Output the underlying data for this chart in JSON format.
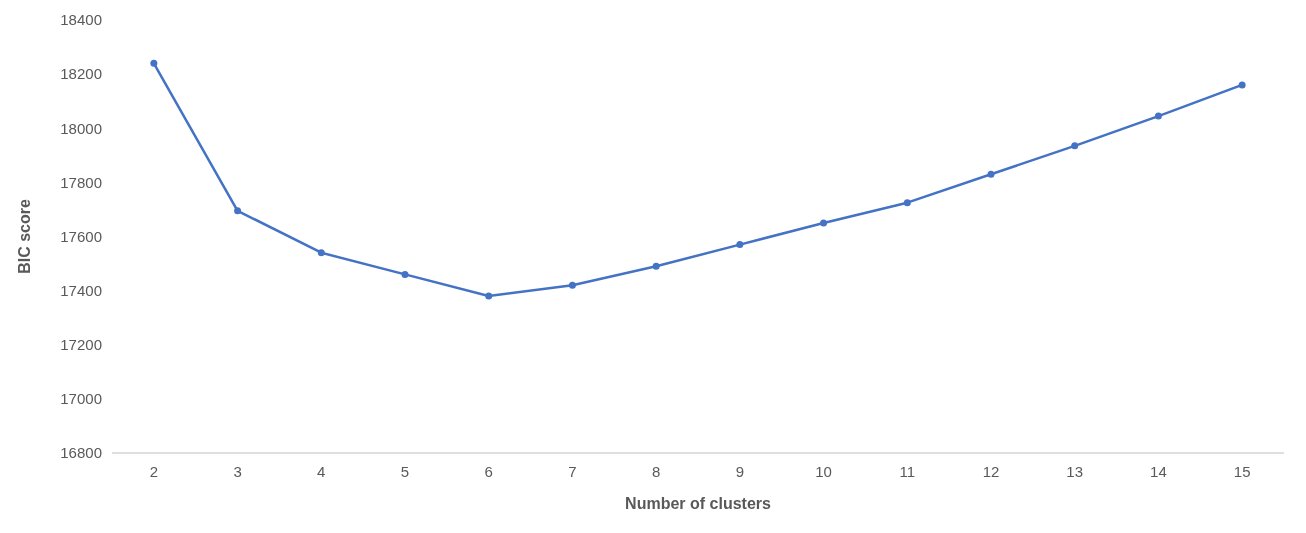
{
  "chart_data": {
    "type": "line",
    "xlabel": "Number of clusters",
    "ylabel": "BIC score",
    "categories": [
      "2",
      "3",
      "4",
      "5",
      "6",
      "7",
      "8",
      "9",
      "10",
      "11",
      "12",
      "13",
      "14",
      "15"
    ],
    "series": [
      {
        "color": "#4472c4",
        "values": [
          18240,
          17695,
          17540,
          17460,
          17380,
          17420,
          17490,
          17570,
          17650,
          17725,
          17830,
          17935,
          18045,
          18160
        ]
      }
    ],
    "ylim": [
      16800,
      18400
    ],
    "yticks": [
      16800,
      17000,
      17200,
      17400,
      17600,
      17800,
      18000,
      18200,
      18400
    ],
    "marker": "circle",
    "line_style": "solid"
  }
}
